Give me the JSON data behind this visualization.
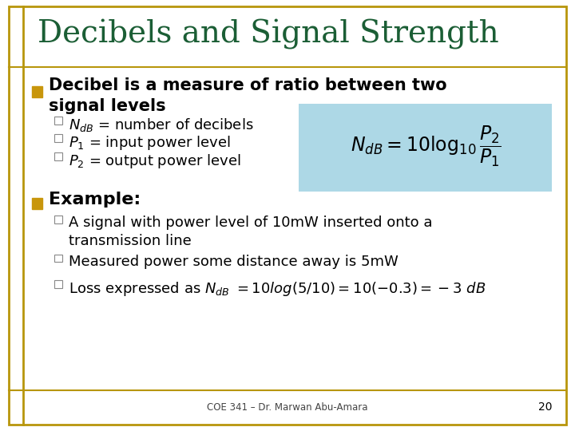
{
  "title": "Decibels and Signal Strength",
  "title_color": "#1B5E35",
  "background_color": "#FFFFFF",
  "border_color": "#B8960C",
  "bullet_main_color": "#C8960C",
  "sub_bullet_color": "#AAAAAA",
  "formula_box_color": "#ADD8E6",
  "footer_text": "COE 341 – Dr. Marwan Abu-Amara",
  "page_number": "20",
  "text_color": "#000000",
  "title_fontsize": 28,
  "main_bullet_fontsize": 15,
  "sub_fontsize": 13,
  "example_fontsize": 16
}
